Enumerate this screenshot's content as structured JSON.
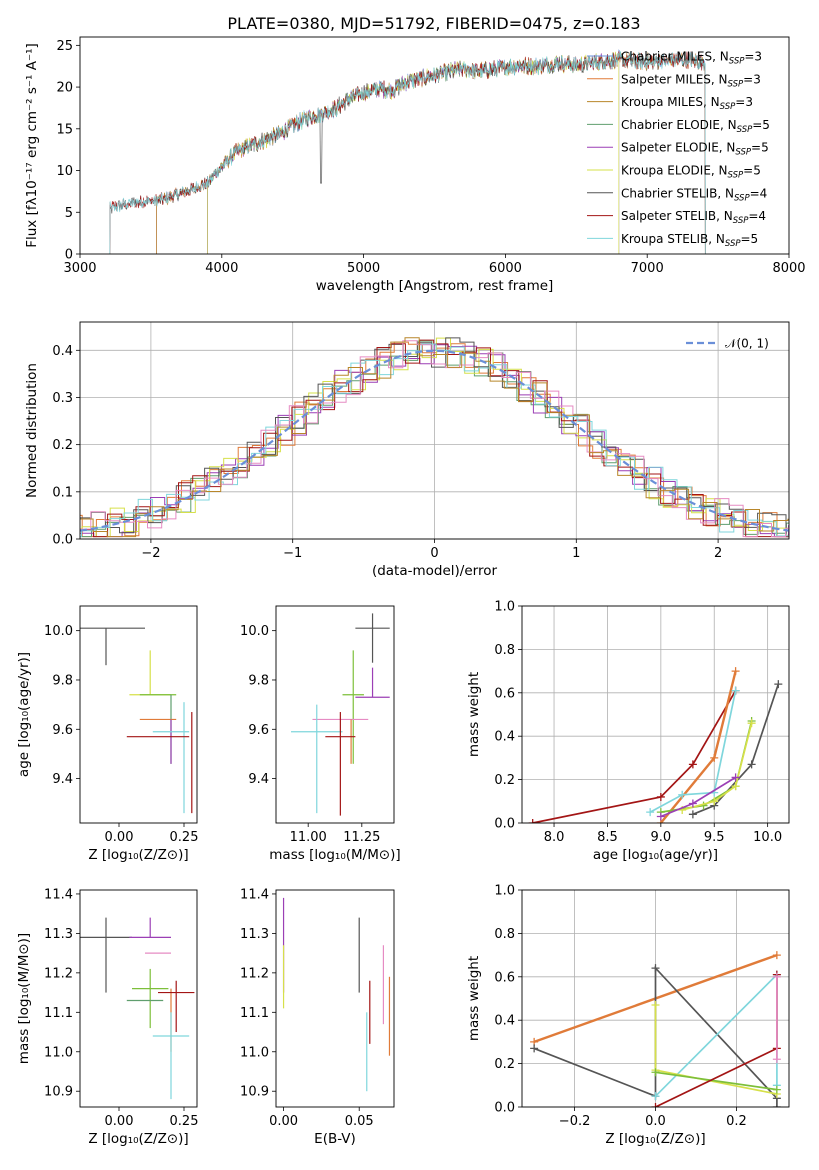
{
  "title": "PLATE=0380, MJD=51792, FIBERID=0475, z=0.183",
  "colors": {
    "chabrier_miles": "#6a8fd8",
    "salpeter_miles": "#e07b39",
    "kroupa_miles": "#b8862a",
    "chabrier_elodie": "#5f9e6e",
    "salpeter_elodie": "#9b3fb5",
    "kroupa_elodie": "#d6e04a",
    "chabrier_stelib": "#555555",
    "salpeter_stelib": "#a31515",
    "kroupa_stelib": "#7fd6dc",
    "pink": "#e68bc3",
    "green": "#7dbf3a"
  },
  "chart_data": [
    {
      "id": "spectrum",
      "type": "line",
      "xlabel": "wavelength [Angstrom, rest frame]",
      "ylabel": "Flux [fλ10⁻¹⁷ erg cm⁻² s⁻¹ A⁻¹]",
      "xlim": [
        3000,
        8000
      ],
      "ylim": [
        0,
        26
      ],
      "xticks": [
        "3000",
        "4000",
        "5000",
        "6000",
        "7000",
        "8000"
      ],
      "yticks": [
        "0",
        "5",
        "10",
        "15",
        "20",
        "25"
      ],
      "x": [
        3210,
        3300,
        3400,
        3500,
        3600,
        3700,
        3800,
        3900,
        4000,
        4100,
        4200,
        4300,
        4400,
        4500,
        4600,
        4700,
        4800,
        4900,
        5000,
        5100,
        5200,
        5300,
        5400,
        5500,
        5600,
        5700,
        5800,
        5900,
        6000,
        6100,
        6200,
        6300,
        6400,
        6500,
        6600,
        6700,
        6800,
        6900,
        7000,
        7100,
        7200,
        7300,
        7400
      ],
      "y": [
        5.5,
        5.9,
        6.1,
        6.4,
        6.6,
        7.2,
        7.8,
        8.5,
        10.5,
        12.2,
        13.0,
        13.6,
        14.3,
        15.4,
        16.3,
        16.8,
        17.4,
        18.6,
        19.3,
        19.8,
        19.6,
        20.6,
        21.0,
        21.4,
        21.8,
        22.2,
        21.9,
        22.1,
        22.4,
        22.6,
        22.5,
        22.7,
        22.9,
        22.6,
        22.9,
        23.1,
        23.3,
        23.1,
        23.0,
        23.1,
        23.3,
        23.2,
        23.0
      ],
      "series": [
        {
          "name": "Chabrier MILES, N_SSP=3",
          "color": "#6a8fd8",
          "xmin": 3540,
          "xmax": 7410
        },
        {
          "name": "Salpeter MILES, N_SSP=3",
          "color": "#e07b39",
          "xmin": 3540,
          "xmax": 7410
        },
        {
          "name": "Kroupa MILES, N_SSP=3",
          "color": "#b8862a",
          "xmin": 3540,
          "xmax": 7410
        },
        {
          "name": "Chabrier ELODIE, N_SSP=5",
          "color": "#5f9e6e",
          "xmin": 3900,
          "xmax": 6800
        },
        {
          "name": "Salpeter ELODIE, N_SSP=5",
          "color": "#9b3fb5",
          "xmin": 3900,
          "xmax": 6800
        },
        {
          "name": "Kroupa ELODIE, N_SSP=5",
          "color": "#d6e04a",
          "xmin": 3900,
          "xmax": 6800
        },
        {
          "name": "Chabrier STELIB, N_SSP=4",
          "color": "#555555",
          "xmin": 3210,
          "xmax": 7410
        },
        {
          "name": "Salpeter STELIB, N_SSP=4",
          "color": "#a31515",
          "xmin": 3210,
          "xmax": 7410
        },
        {
          "name": "Kroupa STELIB, N_SSP=5",
          "color": "#7fd6dc",
          "xmin": 3210,
          "xmax": 7410
        }
      ],
      "legend_position": "top-right",
      "grid": false
    },
    {
      "id": "residuals",
      "type": "step",
      "xlabel": "(data-model)/error",
      "ylabel": "Normed distribution",
      "xlim": [
        -2.5,
        2.5
      ],
      "ylim": [
        0,
        0.46
      ],
      "xticks": [
        "−2",
        "−1",
        "0",
        "1",
        "2"
      ],
      "yticks": [
        "0.0",
        "0.1",
        "0.2",
        "0.3",
        "0.4"
      ],
      "bin_width": 0.1,
      "reference_curve": {
        "name": "𝒩(0, 1)",
        "mean": 0,
        "sigma": 1,
        "color": "#6a8fd8"
      },
      "legend_position": "top-right",
      "grid": true
    },
    {
      "id": "age-vs-Z",
      "type": "errorbar",
      "xlabel": "Z [log₁₀(Z/Z⊙)]",
      "ylabel": "age  [log₁₀(age/yr)]",
      "xlim": [
        -0.15,
        0.3
      ],
      "ylim": [
        9.22,
        10.1
      ],
      "xticks": [
        "0.00",
        "0.25"
      ],
      "yticks": [
        "9.4",
        "9.6",
        "9.8",
        "10.0"
      ],
      "points": [
        {
          "x": -0.05,
          "y": 10.01,
          "xerr": 0.15,
          "yerr_lo": 0.15,
          "yerr_hi": 0.0,
          "color": "#555555"
        },
        {
          "x": 0.12,
          "y": 9.74,
          "xerr": 0.08,
          "yerr_lo": 0.0,
          "yerr_hi": 0.18,
          "color": "#d6e04a"
        },
        {
          "x": 0.15,
          "y": 9.74,
          "xerr": 0.07,
          "yerr_lo": 0.0,
          "yerr_hi": 0.0,
          "color": "#7dbf3a"
        },
        {
          "x": 0.2,
          "y": 9.74,
          "xerr": 0.0,
          "yerr_lo": 0.28,
          "yerr_hi": 0.0,
          "color": "#5f9e6e"
        },
        {
          "x": 0.15,
          "y": 9.64,
          "xerr": 0.07,
          "yerr_lo": 0.0,
          "yerr_hi": 0.0,
          "color": "#e07b39"
        },
        {
          "x": 0.2,
          "y": 9.64,
          "xerr": 0.0,
          "yerr_lo": 0.18,
          "yerr_hi": 0.0,
          "color": "#9b3fb5"
        },
        {
          "x": 0.2,
          "y": 9.59,
          "xerr": 0.07,
          "yerr_lo": 0.0,
          "yerr_hi": 0.0,
          "color": "#7fd6dc"
        },
        {
          "x": 0.25,
          "y": 9.59,
          "xerr": 0.0,
          "yerr_lo": 0.33,
          "yerr_hi": 0.12,
          "color": "#7fd6dc"
        },
        {
          "x": 0.15,
          "y": 9.57,
          "xerr": 0.12,
          "yerr_lo": 0.0,
          "yerr_hi": 0.0,
          "color": "#a31515"
        },
        {
          "x": 0.28,
          "y": 9.57,
          "xerr": 0.0,
          "yerr_lo": 0.31,
          "yerr_hi": 0.1,
          "color": "#a31515"
        }
      ]
    },
    {
      "id": "age-vs-mass",
      "type": "errorbar",
      "xlabel": "mass [log₁₀(M/M⊙)]",
      "ylabel": "",
      "xlim": [
        10.85,
        11.4
      ],
      "ylim": [
        9.22,
        10.1
      ],
      "xticks": [
        "11.00",
        "11.25"
      ],
      "yticks": [
        "9.4",
        "9.6",
        "9.8",
        "10.0"
      ],
      "points": [
        {
          "x": 11.3,
          "y": 10.01,
          "xerr": 0.08,
          "yerr_lo": 0.14,
          "yerr_hi": 0.06,
          "color": "#555555"
        },
        {
          "x": 11.21,
          "y": 9.74,
          "xerr": 0.05,
          "yerr_lo": 0.28,
          "yerr_hi": 0.18,
          "color": "#7dbf3a"
        },
        {
          "x": 11.3,
          "y": 9.73,
          "xerr": 0.08,
          "yerr_lo": 0.0,
          "yerr_hi": 0.12,
          "color": "#9b3fb5"
        },
        {
          "x": 11.15,
          "y": 9.64,
          "xerr": 0.13,
          "yerr_lo": 0.0,
          "yerr_hi": 0.0,
          "color": "#e68bc3"
        },
        {
          "x": 11.2,
          "y": 9.64,
          "xerr": 0.0,
          "yerr_lo": 0.18,
          "yerr_hi": 0.0,
          "color": "#e07b39"
        },
        {
          "x": 11.04,
          "y": 9.59,
          "xerr": 0.12,
          "yerr_lo": 0.33,
          "yerr_hi": 0.11,
          "color": "#7fd6dc"
        },
        {
          "x": 11.15,
          "y": 9.57,
          "xerr": 0.07,
          "yerr_lo": 0.32,
          "yerr_hi": 0.1,
          "color": "#a31515"
        }
      ]
    },
    {
      "id": "weight-vs-age",
      "type": "line",
      "xlabel": "age  [log₁₀(age/yr)]",
      "ylabel": "mass weight",
      "xlim": [
        7.7,
        10.2
      ],
      "ylim": [
        0,
        1.0
      ],
      "xticks": [
        "8.0",
        "8.5",
        "9.0",
        "9.5",
        "10.0"
      ],
      "yticks": [
        "0.0",
        "0.2",
        "0.4",
        "0.6",
        "0.8",
        "1.0"
      ],
      "grid": true,
      "series": [
        {
          "color": "#a31515",
          "x": [
            7.8,
            9.0,
            9.3,
            9.7
          ],
          "y": [
            0.0,
            0.12,
            0.27,
            0.61
          ]
        },
        {
          "color": "#e07b39",
          "x": [
            9.0,
            9.5,
            9.7
          ],
          "y": [
            0.0,
            0.3,
            0.7
          ]
        },
        {
          "color": "#555555",
          "x": [
            9.3,
            9.5,
            9.85,
            10.1
          ],
          "y": [
            0.04,
            0.08,
            0.27,
            0.64
          ]
        },
        {
          "color": "#7dbf3a",
          "x": [
            9.0,
            9.4,
            9.7,
            9.85
          ],
          "y": [
            0.05,
            0.08,
            0.17,
            0.47
          ]
        },
        {
          "color": "#d6e04a",
          "x": [
            9.2,
            9.5,
            9.7,
            9.85
          ],
          "y": [
            0.06,
            0.1,
            0.17,
            0.46
          ]
        },
        {
          "color": "#7fd6dc",
          "x": [
            8.9,
            9.2,
            9.5,
            9.7
          ],
          "y": [
            0.05,
            0.13,
            0.14,
            0.61
          ]
        },
        {
          "color": "#9b3fb5",
          "x": [
            9.0,
            9.3,
            9.7
          ],
          "y": [
            0.03,
            0.09,
            0.21
          ]
        }
      ]
    },
    {
      "id": "mass-vs-Z",
      "type": "errorbar",
      "xlabel": "Z [log₁₀(Z/Z⊙)]",
      "ylabel": "mass [log₁₀(M/M⊙)]",
      "xlim": [
        -0.15,
        0.3
      ],
      "ylim": [
        10.86,
        11.41
      ],
      "xticks": [
        "0.00",
        "0.25"
      ],
      "yticks": [
        "10.9",
        "11.0",
        "11.1",
        "11.2",
        "11.3",
        "11.4"
      ],
      "points": [
        {
          "x": -0.05,
          "y": 11.29,
          "xerr": 0.1,
          "yerr_lo": 0.14,
          "yerr_hi": 0.05,
          "color": "#555555"
        },
        {
          "x": 0.12,
          "y": 11.29,
          "xerr": 0.08,
          "yerr_lo": 0.0,
          "yerr_hi": 0.05,
          "color": "#9b3fb5"
        },
        {
          "x": 0.15,
          "y": 11.25,
          "xerr": 0.05,
          "yerr_lo": 0.0,
          "yerr_hi": 0.0,
          "color": "#e68bc3"
        },
        {
          "x": 0.12,
          "y": 11.16,
          "xerr": 0.07,
          "yerr_lo": 0.1,
          "yerr_hi": 0.05,
          "color": "#7dbf3a"
        },
        {
          "x": 0.2,
          "y": 11.16,
          "xerr": 0.0,
          "yerr_lo": 0.16,
          "yerr_hi": 0.0,
          "color": "#e07b39"
        },
        {
          "x": 0.22,
          "y": 11.15,
          "xerr": 0.07,
          "yerr_lo": 0.1,
          "yerr_hi": 0.03,
          "color": "#a31515"
        },
        {
          "x": 0.1,
          "y": 11.13,
          "xerr": 0.07,
          "yerr_lo": 0.0,
          "yerr_hi": 0.0,
          "color": "#5f9e6e"
        },
        {
          "x": 0.2,
          "y": 11.04,
          "xerr": 0.07,
          "yerr_lo": 0.16,
          "yerr_hi": 0.06,
          "color": "#7fd6dc"
        }
      ]
    },
    {
      "id": "mass-vs-EBV",
      "type": "errorbar",
      "xlabel": "E(B-V)",
      "ylabel": "",
      "xlim": [
        -0.005,
        0.073
      ],
      "ylim": [
        10.86,
        11.41
      ],
      "xticks": [
        "0.00",
        "0.05"
      ],
      "yticks": [
        "10.9",
        "11.0",
        "11.1",
        "11.2",
        "11.3",
        "11.4"
      ],
      "points": [
        {
          "x": 0.0,
          "y": 11.29,
          "xerr": 0.0,
          "yerr_lo": 0.14,
          "yerr_hi": 0.1,
          "color": "#9b3fb5"
        },
        {
          "x": 0.0,
          "y": 11.19,
          "xerr": 0.0,
          "yerr_lo": 0.08,
          "yerr_hi": 0.08,
          "color": "#d6e04a"
        },
        {
          "x": 0.05,
          "y": 11.25,
          "xerr": 0.0,
          "yerr_lo": 0.1,
          "yerr_hi": 0.09,
          "color": "#555555"
        },
        {
          "x": 0.055,
          "y": 11.1,
          "xerr": 0.0,
          "yerr_lo": 0.2,
          "yerr_hi": 0.0,
          "color": "#7fd6dc"
        },
        {
          "x": 0.057,
          "y": 11.09,
          "xerr": 0.0,
          "yerr_lo": 0.07,
          "yerr_hi": 0.09,
          "color": "#a31515"
        },
        {
          "x": 0.066,
          "y": 11.17,
          "xerr": 0.0,
          "yerr_lo": 0.1,
          "yerr_hi": 0.1,
          "color": "#e68bc3"
        },
        {
          "x": 0.07,
          "y": 11.09,
          "xerr": 0.0,
          "yerr_lo": 0.1,
          "yerr_hi": 0.1,
          "color": "#e07b39"
        }
      ]
    },
    {
      "id": "weight-vs-Z",
      "type": "line",
      "xlabel": "Z [log₁₀(Z/Z⊙)]",
      "ylabel": "mass weight",
      "xlim": [
        -0.33,
        0.33
      ],
      "ylim": [
        0,
        1.0
      ],
      "xticks": [
        "−0.2",
        "0.0",
        "0.2"
      ],
      "yticks": [
        "0.0",
        "0.2",
        "0.4",
        "0.6",
        "0.8",
        "1.0"
      ],
      "grid": true,
      "series": [
        {
          "color": "#e07b39",
          "x": [
            -0.3,
            0.3
          ],
          "y": [
            0.3,
            0.7
          ]
        },
        {
          "color": "#555555",
          "x": [
            -0.3,
            0.0,
            0.0,
            0.3,
            0.3
          ],
          "y": [
            0.27,
            0.05,
            0.64,
            0.04,
            0.0
          ]
        },
        {
          "color": "#7fd6dc",
          "x": [
            0.0,
            0.3,
            0.3
          ],
          "y": [
            0.05,
            0.61,
            0.1
          ]
        },
        {
          "color": "#d6e04a",
          "x": [
            0.0,
            0.0,
            0.3
          ],
          "y": [
            0.47,
            0.17,
            0.06
          ]
        },
        {
          "color": "#7dbf3a",
          "x": [
            0.0,
            0.3
          ],
          "y": [
            0.16,
            0.08
          ]
        },
        {
          "color": "#a31515",
          "x": [
            0.0,
            0.3,
            0.3
          ],
          "y": [
            0.0,
            0.27,
            0.61
          ]
        },
        {
          "color": "#e68bc3",
          "x": [
            0.3,
            0.3
          ],
          "y": [
            0.22,
            0.6
          ]
        }
      ]
    }
  ]
}
